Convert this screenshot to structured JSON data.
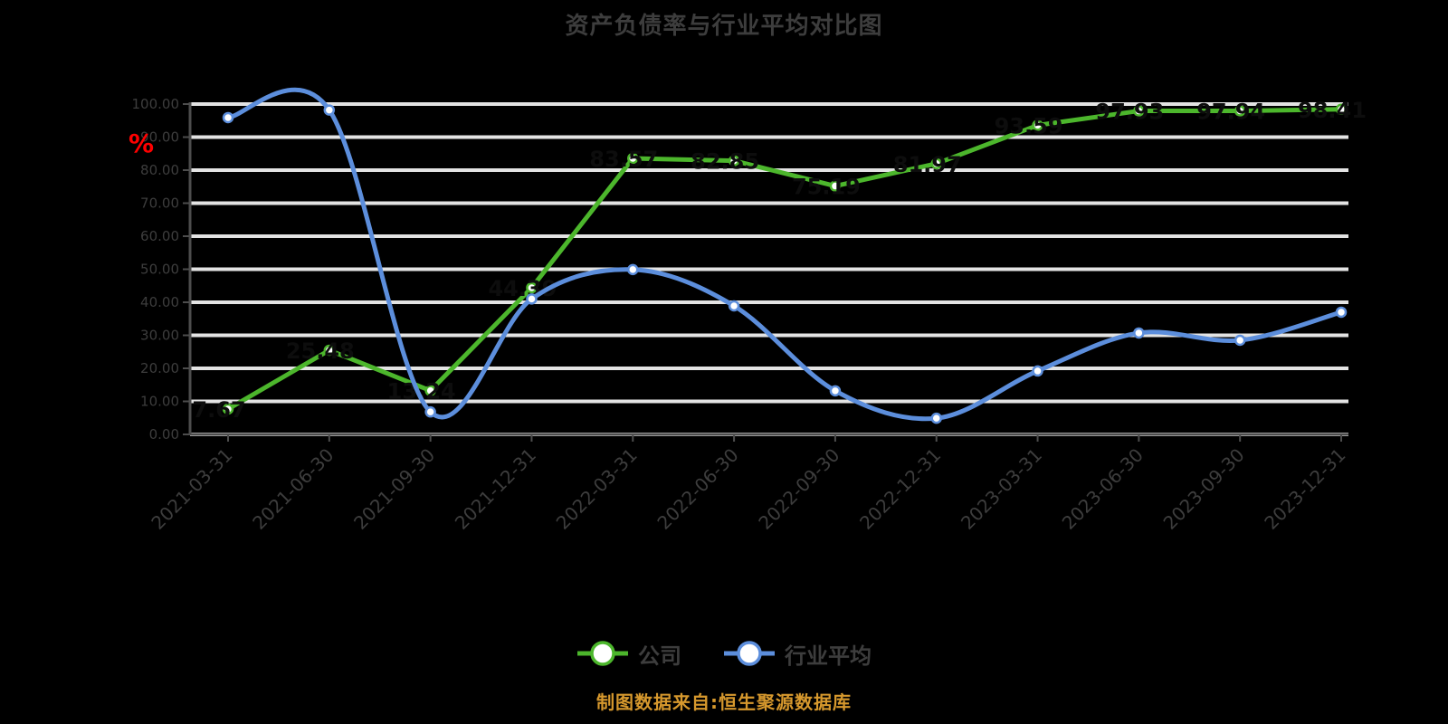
{
  "title": "资产负债率与行业平均对比图",
  "footer_source": "制图数据来自:恒生聚源数据库",
  "colors": {
    "background": "#000000",
    "gridline": "#E3E3E3",
    "axis": "#4D4D4D",
    "text_muted": "#3D3D3D",
    "data_label": "#0D0D0D",
    "unit_red": "#FF0000",
    "footer_orange": "#D6982D",
    "series_green": "#4CB62C",
    "series_blue": "#5C8EDC",
    "marker_fill": "#FFFFFF"
  },
  "y_axis": {
    "unit": "%",
    "tick_labels": [
      "100.00",
      "90.00",
      "80.00",
      "70.00",
      "60.00",
      "50.00",
      "40.00",
      "30.00",
      "20.00",
      "10.00",
      "0.00"
    ]
  },
  "legend": {
    "items": [
      {
        "label": "公司",
        "color": "#4CB62C"
      },
      {
        "label": "行业平均",
        "color": "#5C8EDC"
      }
    ]
  },
  "chart_data": {
    "type": "line",
    "title": "资产负债率与行业平均对比图",
    "ylabel": "%",
    "ylim": [
      0,
      100
    ],
    "grid": "horizontal",
    "legend_position": "bottom",
    "categories": [
      "2021-03-31",
      "2021-06-30",
      "2021-09-30",
      "2021-12-31",
      "2022-03-31",
      "2022-06-30",
      "2022-09-30",
      "2022-12-31",
      "2023-03-31",
      "2023-06-30",
      "2023-09-30",
      "2023-12-31"
    ],
    "series": [
      {
        "name": "公司",
        "color": "#4CB62C",
        "smooth": false,
        "labels_shown": true,
        "values": [
          7.67,
          25.48,
          13.24,
          44.39,
          83.57,
          82.85,
          75.19,
          81.97,
          93.59,
          97.93,
          97.94,
          98.41
        ]
      },
      {
        "name": "行业平均",
        "color": "#5C8EDC",
        "smooth": true,
        "labels_shown": false,
        "values": [
          95.9,
          98.2,
          6.8,
          41.0,
          49.9,
          38.9,
          13.2,
          4.9,
          19.2,
          30.7,
          28.5,
          37.0
        ]
      }
    ]
  }
}
